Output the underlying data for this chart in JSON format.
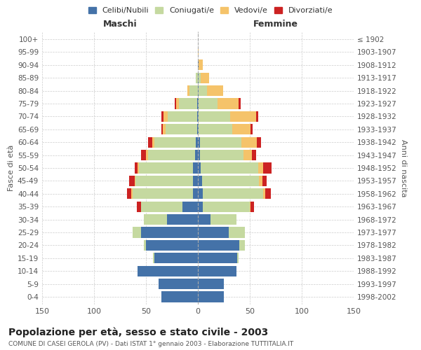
{
  "age_groups": [
    "0-4",
    "5-9",
    "10-14",
    "15-19",
    "20-24",
    "25-29",
    "30-34",
    "35-39",
    "40-44",
    "45-49",
    "50-54",
    "55-59",
    "60-64",
    "65-69",
    "70-74",
    "75-79",
    "80-84",
    "85-89",
    "90-94",
    "95-99",
    "100+"
  ],
  "birth_years": [
    "1998-2002",
    "1993-1997",
    "1988-1992",
    "1983-1987",
    "1978-1982",
    "1973-1977",
    "1968-1972",
    "1963-1967",
    "1958-1962",
    "1953-1957",
    "1948-1952",
    "1943-1947",
    "1938-1942",
    "1933-1937",
    "1928-1932",
    "1923-1927",
    "1918-1922",
    "1913-1917",
    "1908-1912",
    "1903-1907",
    "≤ 1902"
  ],
  "colors": {
    "celibi": "#4472a8",
    "coniugati": "#c5d9a0",
    "vedovi": "#f5c36a",
    "divorziati": "#cc2222"
  },
  "males": {
    "celibi": [
      35,
      38,
      58,
      42,
      50,
      55,
      30,
      15,
      5,
      5,
      5,
      3,
      2,
      1,
      1,
      1,
      0,
      0,
      0,
      0,
      0
    ],
    "coniugati": [
      0,
      0,
      0,
      1,
      2,
      8,
      22,
      40,
      58,
      55,
      52,
      45,
      40,
      30,
      28,
      17,
      8,
      2,
      0,
      0,
      0
    ],
    "vedovi": [
      0,
      0,
      0,
      0,
      0,
      0,
      0,
      0,
      1,
      1,
      1,
      2,
      2,
      3,
      4,
      3,
      2,
      0,
      0,
      0,
      0
    ],
    "divorziati": [
      0,
      0,
      0,
      0,
      0,
      0,
      0,
      4,
      4,
      5,
      3,
      5,
      4,
      1,
      2,
      1,
      0,
      0,
      0,
      0,
      0
    ]
  },
  "females": {
    "celibi": [
      25,
      25,
      37,
      38,
      40,
      30,
      12,
      5,
      5,
      4,
      3,
      2,
      2,
      1,
      1,
      1,
      1,
      1,
      1,
      0,
      0
    ],
    "coniugati": [
      0,
      0,
      0,
      1,
      5,
      15,
      25,
      45,
      58,
      55,
      55,
      42,
      40,
      32,
      30,
      18,
      8,
      2,
      0,
      0,
      0
    ],
    "vedovi": [
      0,
      0,
      0,
      0,
      0,
      0,
      0,
      1,
      2,
      3,
      5,
      8,
      15,
      18,
      25,
      20,
      15,
      8,
      4,
      1,
      0
    ],
    "divorziati": [
      0,
      0,
      0,
      0,
      0,
      0,
      0,
      3,
      5,
      4,
      8,
      4,
      4,
      2,
      2,
      2,
      0,
      0,
      0,
      0,
      0
    ]
  },
  "title": "Popolazione per età, sesso e stato civile - 2003",
  "subtitle": "COMUNE DI CASEI GEROLA (PV) - Dati ISTAT 1° gennaio 2003 - Elaborazione TUTTITALIA.IT",
  "xlabel_left": "Maschi",
  "xlabel_right": "Femmine",
  "ylabel_left": "Fasce di età",
  "ylabel_right": "Anni di nascita",
  "xlim": 150,
  "legend_labels": [
    "Celibi/Nubili",
    "Coniugati/e",
    "Vedovi/e",
    "Divorziati/e"
  ],
  "background_color": "#ffffff",
  "grid_color": "#cccccc"
}
